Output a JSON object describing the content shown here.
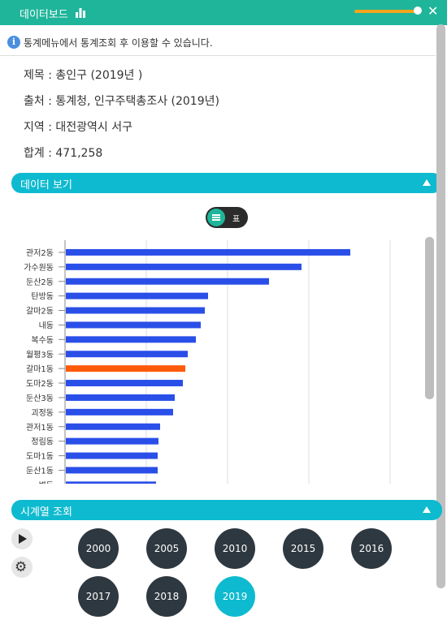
{
  "header": {
    "title": "데이터보드",
    "close_icon": "close-icon",
    "chart_icon": "bar-chart-icon",
    "opacity_level": 0.95
  },
  "notice": {
    "text": "통계메뉴에서 통계조회 후 이용할 수 있습니다.",
    "icon": "info-icon"
  },
  "info": {
    "subject": "제목 : 총인구 (2019년 )",
    "source": "출처 : 통계청, 인구주택총조사 (2019년)",
    "region": "지역 : 대전광역시 서구",
    "total": "합계 : 471,258"
  },
  "data_section": {
    "label": "데이터 보기"
  },
  "toggle": {
    "label": "표",
    "icon": "list-icon"
  },
  "timeseries_section": {
    "label": "시계열 조회"
  },
  "controls": {
    "play_icon": "play-icon",
    "settings_icon": "gear-icon"
  },
  "years": [
    "2000",
    "2005",
    "2010",
    "2015",
    "2016",
    "2017",
    "2018",
    "2019"
  ],
  "selected_year": "2019",
  "colors": {
    "accent": "#1fb59a",
    "section": "#0ebacf",
    "bar": "#2a4fe8",
    "highlight": "#ff5a0a",
    "year_button": "#2e3840"
  },
  "chart_data": {
    "type": "bar",
    "orientation": "horizontal",
    "categories": [
      "관저2동",
      "가수원동",
      "둔산2동",
      "탄방동",
      "갈마2동",
      "내동",
      "복수동",
      "월평3동",
      "갈마1동",
      "도마2동",
      "둔산3동",
      "괴정동",
      "관저1동",
      "정림동",
      "도마1동",
      "둔산1동",
      "변동"
    ],
    "values": [
      35000,
      29000,
      25000,
      17500,
      17100,
      16600,
      16000,
      15000,
      14700,
      14400,
      13400,
      13200,
      11600,
      11400,
      11300,
      11300,
      11100
    ],
    "highlight_category": "갈마1동",
    "xlim": [
      0,
      43000
    ],
    "grid": true
  }
}
